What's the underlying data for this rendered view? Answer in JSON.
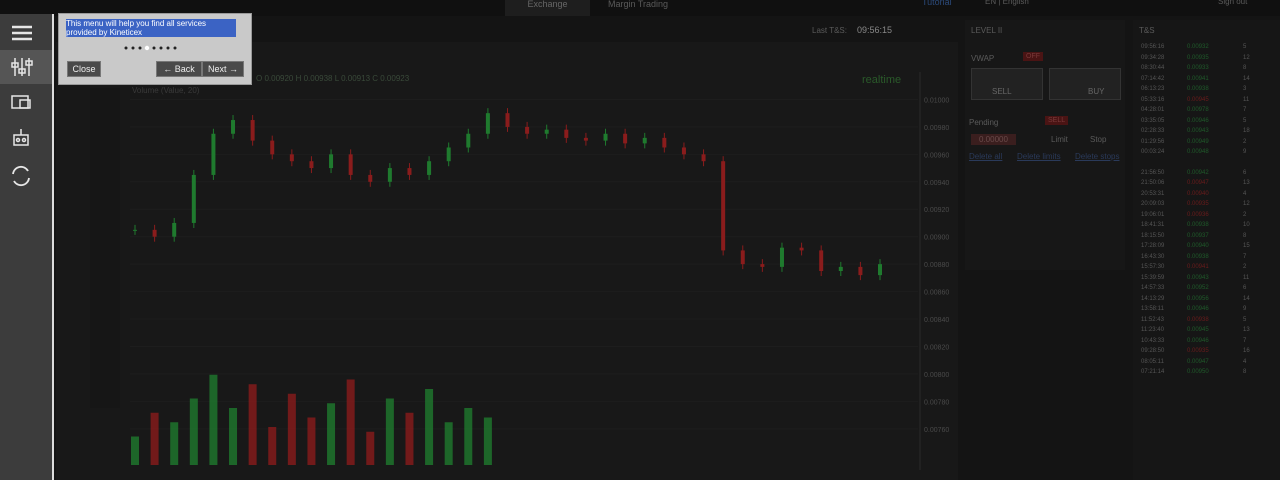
{
  "tabs": {
    "exchange": "Exchange",
    "margin": "Margin Trading"
  },
  "topbar": {
    "tutorial": "Tutorial",
    "language": "EN | English",
    "signout": "Sign out"
  },
  "tutorial_popup": {
    "text": "This menu will help you find all services provided by Kineticex",
    "close": "Close",
    "back": "← Back",
    "next": "Next →"
  },
  "chart_header": {
    "last_label": "Last T&S:",
    "last_time": "09:56:15",
    "ohlc": "O 0.00920 H 0.00938 L 0.00913 C 0.00923",
    "volume": "Volume (Value, 20)",
    "realtime": "realtime"
  },
  "price_chart": {
    "closes": [
      0.00905,
      0.009,
      0.0091,
      0.00945,
      0.00975,
      0.00985,
      0.0097,
      0.0096,
      0.00955,
      0.0095,
      0.0096,
      0.00945,
      0.0094,
      0.0095,
      0.00945,
      0.00955,
      0.00965,
      0.00975,
      0.0099,
      0.0098,
      0.00975,
      0.00978,
      0.00972,
      0.0097,
      0.00975,
      0.00968,
      0.00972,
      0.00965,
      0.0096,
      0.00955,
      0.0089,
      0.0088,
      0.00878,
      0.00892,
      0.0089,
      0.00875,
      0.00878,
      0.00872,
      0.0088
    ],
    "volumes": [
      30,
      55,
      45,
      70,
      95,
      60,
      85,
      40,
      75,
      50,
      65,
      90,
      35,
      70,
      55,
      80,
      45,
      60,
      50,
      null,
      null,
      null,
      null,
      null,
      null,
      null,
      null,
      null,
      null,
      null,
      null,
      null,
      null,
      null,
      null,
      null,
      null,
      null,
      null
    ],
    "ylim": [
      0.0073,
      0.0102
    ],
    "yticks": [
      {
        "value": 0.01,
        "label": "0.01000"
      },
      {
        "value": 0.0098,
        "label": "0.00980"
      },
      {
        "value": 0.0096,
        "label": "0.00960"
      },
      {
        "value": 0.0094,
        "label": "0.00940"
      },
      {
        "value": 0.0092,
        "label": "0.00920"
      },
      {
        "value": 0.009,
        "label": "0.00900"
      },
      {
        "value": 0.0088,
        "label": "0.00880"
      },
      {
        "value": 0.0086,
        "label": "0.00860"
      },
      {
        "value": 0.0084,
        "label": "0.00840"
      },
      {
        "value": 0.0082,
        "label": "0.00820"
      },
      {
        "value": 0.008,
        "label": "0.00800"
      },
      {
        "value": 0.0078,
        "label": "0.00780"
      },
      {
        "value": 0.0076,
        "label": "0.00760"
      }
    ],
    "up_color": "#1f7a2e",
    "down_color": "#8a1c1c"
  },
  "level2": {
    "title": "LEVEL II",
    "vwap": "VWAP",
    "off": "OFF",
    "sell": "SELL",
    "buy": "BUY",
    "pending": "Pending",
    "pending_sell": "SELL",
    "amount": "0.00000",
    "limit": "Limit",
    "stop": "Stop",
    "delete_all": "Delete all",
    "delete_limits": "Delete limits",
    "delete_stops": "Delete stops"
  },
  "ts": {
    "title": "T&S",
    "rows": [
      {
        "time": "09:56:16",
        "price": "0.00932",
        "size": "5",
        "side": "buy"
      },
      {
        "time": "09:34:28",
        "price": "0.00935",
        "size": "12",
        "side": "buy"
      },
      {
        "time": "08:30:44",
        "price": "0.00933",
        "size": "8",
        "side": "buy"
      },
      {
        "time": "07:14:42",
        "price": "0.00941",
        "size": "14",
        "side": "buy"
      },
      {
        "time": "06:13:23",
        "price": "0.00938",
        "size": "3",
        "side": "buy"
      },
      {
        "time": "05:33:16",
        "price": "0.00945",
        "size": "11",
        "side": "sell"
      },
      {
        "time": "04:28:01",
        "price": "0.00978",
        "size": "7",
        "side": "buy"
      },
      {
        "time": "03:35:05",
        "price": "0.00946",
        "size": "5",
        "side": "buy"
      },
      {
        "time": "02:28:33",
        "price": "0.00943",
        "size": "18",
        "side": "buy"
      },
      {
        "time": "01:29:56",
        "price": "0.00949",
        "size": "2",
        "side": "buy"
      },
      {
        "time": "00:03:24",
        "price": "0.00948",
        "size": "9",
        "side": "buy"
      },
      {
        "time": "21:56:50",
        "price": "0.00942",
        "size": "6",
        "side": "buy"
      },
      {
        "time": "21:50:06",
        "price": "0.00947",
        "size": "13",
        "side": "sell"
      },
      {
        "time": "20:53:31",
        "price": "0.00940",
        "size": "4",
        "side": "sell"
      },
      {
        "time": "20:09:03",
        "price": "0.00935",
        "size": "12",
        "side": "sell"
      },
      {
        "time": "19:06:01",
        "price": "0.00936",
        "size": "2",
        "side": "sell"
      },
      {
        "time": "18:41:31",
        "price": "0.00938",
        "size": "10",
        "side": "buy"
      },
      {
        "time": "18:15:50",
        "price": "0.00937",
        "size": "8",
        "side": "buy"
      },
      {
        "time": "17:28:09",
        "price": "0.00940",
        "size": "15",
        "side": "buy"
      },
      {
        "time": "16:43:30",
        "price": "0.00938",
        "size": "7",
        "side": "buy"
      },
      {
        "time": "15:57:30",
        "price": "0.00941",
        "size": "2",
        "side": "sell"
      },
      {
        "time": "15:39:59",
        "price": "0.00943",
        "size": "11",
        "side": "buy"
      },
      {
        "time": "14:57:33",
        "price": "0.00952",
        "size": "6",
        "side": "buy"
      },
      {
        "time": "14:13:29",
        "price": "0.00956",
        "size": "14",
        "side": "buy"
      },
      {
        "time": "13:58:11",
        "price": "0.00946",
        "size": "9",
        "side": "buy"
      },
      {
        "time": "11:52:43",
        "price": "0.00938",
        "size": "5",
        "side": "sell"
      },
      {
        "time": "11:23:40",
        "price": "0.00945",
        "size": "13",
        "side": "buy"
      },
      {
        "time": "10:43:33",
        "price": "0.00946",
        "size": "7",
        "side": "buy"
      },
      {
        "time": "09:28:50",
        "price": "0.00935",
        "size": "16",
        "side": "sell"
      },
      {
        "time": "08:05:11",
        "price": "0.00947",
        "size": "4",
        "side": "buy"
      },
      {
        "time": "07:21:14",
        "price": "0.00950",
        "size": "8",
        "side": "buy"
      }
    ]
  }
}
